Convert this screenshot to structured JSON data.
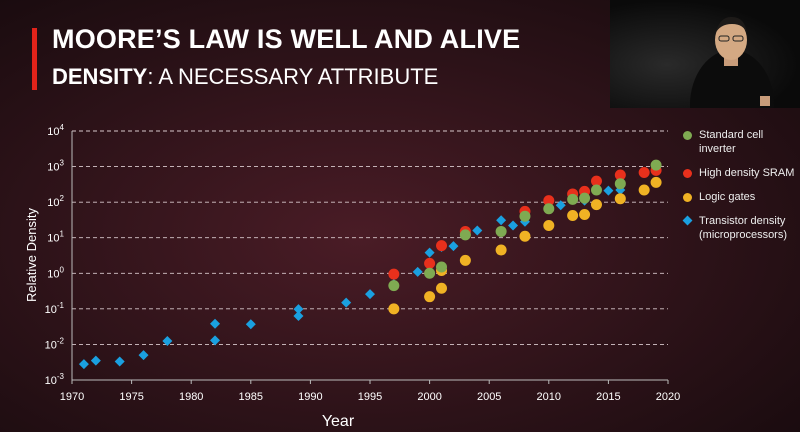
{
  "slide": {
    "title": "MOORE’S LAW IS WELL AND ALIVE",
    "subtitle_strong": "DENSITY",
    "subtitle_rest": ": A NECESSARY ATTRIBUTE"
  },
  "colors": {
    "accent": "#e2231a",
    "standard_cell": "#7faa52",
    "sram": "#e8301c",
    "logic": "#f0b224",
    "transistor": "#1aa0e0"
  },
  "chart_data": {
    "type": "scatter",
    "xlabel": "Year",
    "ylabel": "Relative Density",
    "xlim": [
      1970,
      2020
    ],
    "ylim": [
      0.001,
      10000
    ],
    "yscale": "log",
    "grid": true,
    "xticks": [
      "1970",
      "1975",
      "1980",
      "1985",
      "1990",
      "1995",
      "2000",
      "2005",
      "2010",
      "2015",
      "2020"
    ],
    "yticks": [
      {
        "base": "10",
        "exp": "4"
      },
      {
        "base": "10",
        "exp": "3"
      },
      {
        "base": "10",
        "exp": "2"
      },
      {
        "base": "10",
        "exp": "1"
      },
      {
        "base": "10",
        "exp": "0"
      },
      {
        "base": "10",
        "exp": "-1"
      },
      {
        "base": "10",
        "exp": "-2"
      },
      {
        "base": "10",
        "exp": "-3"
      }
    ],
    "legend_position": "right",
    "series": [
      {
        "name": "Standard cell inverter",
        "marker": "circle",
        "x": [
          1997,
          2000,
          2001,
          2003,
          2006,
          2008,
          2010,
          2012,
          2013,
          2014,
          2016,
          2019
        ],
        "y": [
          0.45,
          1.0,
          1.5,
          12,
          15,
          40,
          65,
          120,
          130,
          220,
          330,
          1100
        ]
      },
      {
        "name": "High density SRAM",
        "marker": "circle",
        "x": [
          1997,
          2000,
          2001,
          2003,
          2008,
          2010,
          2012,
          2013,
          2014,
          2016,
          2018,
          2019
        ],
        "y": [
          0.95,
          1.9,
          6,
          15,
          55,
          110,
          170,
          200,
          390,
          580,
          680,
          780
        ]
      },
      {
        "name": "Logic gates",
        "marker": "circle",
        "x": [
          1997,
          2000,
          2001,
          2001,
          2003,
          2006,
          2008,
          2010,
          2012,
          2013,
          2014,
          2016,
          2018,
          2019
        ],
        "y": [
          0.1,
          0.22,
          0.38,
          1.2,
          2.3,
          4.5,
          11,
          22,
          42,
          45,
          85,
          125,
          220,
          360
        ]
      },
      {
        "name": "Transistor density",
        "legend_line2": "(microprocessors)",
        "marker": "diamond",
        "x": [
          1971,
          1972,
          1974,
          1976,
          1978,
          1982,
          1982,
          1985,
          1989,
          1989,
          1993,
          1995,
          1997,
          1999,
          2000,
          2001,
          2002,
          2004,
          2006,
          2007,
          2008,
          2008,
          2010,
          2011,
          2012,
          2013,
          2015,
          2016
        ],
        "y": [
          0.0028,
          0.0035,
          0.0033,
          0.005,
          0.0125,
          0.013,
          0.038,
          0.037,
          0.063,
          0.098,
          0.15,
          0.26,
          0.5,
          1.1,
          3.8,
          5.5,
          5.8,
          16,
          31,
          22,
          42,
          28,
          75,
          82,
          120,
          110,
          210,
          220
        ]
      }
    ]
  }
}
